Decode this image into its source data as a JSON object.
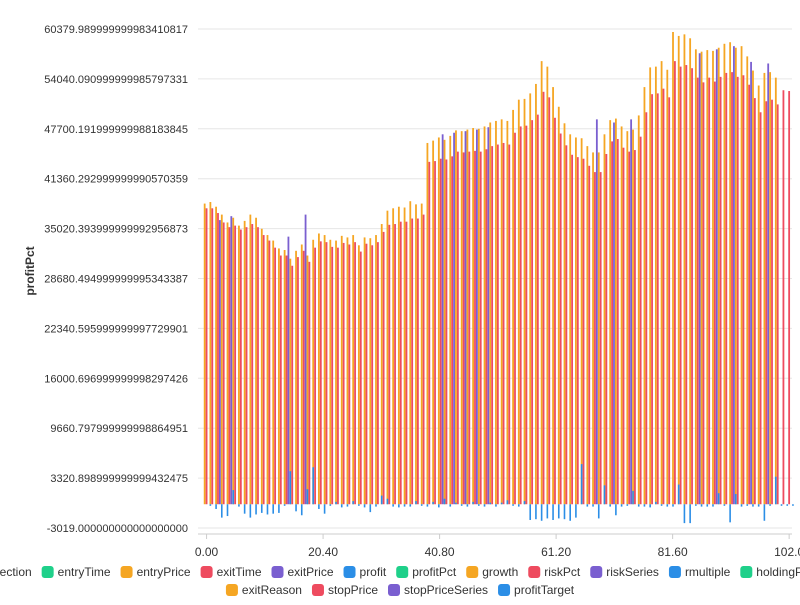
{
  "chart_data": {
    "type": "bar",
    "ylabel": "profitPct",
    "xlabel": "",
    "ylim": [
      -3019.0,
      60379.98999999998
    ],
    "xlim": [
      -1.5,
      102.5
    ],
    "y_ticks": [
      "60379.989999999983410817",
      "54040.090999999985797331",
      "47700.191999999988183845",
      "41360.292999999990570359",
      "35020.393999999992956873",
      "28680.494999999995343387",
      "22340.595999999997729901",
      "16000.696999999998297426",
      "9660.797999999998864951",
      "3320.898999999999432475",
      "-3019.000000000000000000"
    ],
    "x_ticks": [
      "0.00",
      "20.40",
      "40.80",
      "61.20",
      "81.60",
      "102.0"
    ],
    "legend": [
      {
        "name": "direction",
        "color": "#2b8ee6"
      },
      {
        "name": "entryTime",
        "color": "#1fd08a"
      },
      {
        "name": "entryPrice",
        "color": "#f5a623"
      },
      {
        "name": "exitTime",
        "color": "#ee4b5f"
      },
      {
        "name": "exitPrice",
        "color": "#7a5fd0"
      },
      {
        "name": "profit",
        "color": "#2b8ee6"
      },
      {
        "name": "profitPct",
        "color": "#1fd08a"
      },
      {
        "name": "growth",
        "color": "#f5a623"
      },
      {
        "name": "riskPct",
        "color": "#ee4b5f"
      },
      {
        "name": "riskSeries",
        "color": "#7a5fd0"
      },
      {
        "name": "rmultiple",
        "color": "#2b8ee6"
      },
      {
        "name": "holdingPeriod",
        "color": "#1fd08a"
      },
      {
        "name": "exitReason",
        "color": "#f5a623"
      },
      {
        "name": "stopPrice",
        "color": "#ee4b5f"
      },
      {
        "name": "stopPriceSeries",
        "color": "#7a5fd0"
      },
      {
        "name": "profitTarget",
        "color": "#2b8ee6"
      }
    ],
    "series_drawn": [
      {
        "name": "growth",
        "color": "#f5a623",
        "offset": -1,
        "values": [
          38200,
          38400,
          37800,
          36800,
          35800,
          36400,
          35400,
          36000,
          36800,
          36400,
          35000,
          34200,
          33500,
          32500,
          32300,
          31200,
          32200,
          33000,
          31600,
          33600,
          34400,
          34200,
          33600,
          33500,
          34100,
          33900,
          34200,
          32900,
          33900,
          33800,
          34200,
          35600,
          37300,
          37600,
          37800,
          37700,
          38500,
          38100,
          38200,
          45900,
          46200,
          46600,
          46300,
          46800,
          47500,
          47400,
          47600,
          47800,
          47700,
          48000,
          48500,
          48700,
          48900,
          48700,
          50100,
          51400,
          51500,
          52200,
          53400,
          56300,
          55600,
          53000,
          50500,
          48400,
          47000,
          46600,
          46500,
          45500,
          44700,
          44700,
          47000,
          48800,
          49000,
          48000,
          47400,
          47600,
          49400,
          53000,
          55500,
          55600,
          56300,
          55200,
          60000,
          59500,
          59700,
          59200,
          57800,
          57500,
          57700,
          57600,
          58000,
          58500,
          58700,
          58000,
          58200,
          56900,
          55100,
          53200,
          54800,
          54900,
          54200,
          null,
          null
        ]
      },
      {
        "name": "riskPct",
        "color": "#ee4b5f",
        "offset": 0,
        "values": [
          37600,
          37600,
          37000,
          35800,
          35200,
          35400,
          34900,
          35200,
          35600,
          35200,
          34200,
          33500,
          32600,
          31600,
          31600,
          30300,
          31400,
          32200,
          30800,
          32600,
          33400,
          33300,
          32700,
          32600,
          33200,
          33000,
          33300,
          32100,
          33100,
          32900,
          33300,
          34600,
          35500,
          35600,
          35900,
          35900,
          36300,
          36300,
          36800,
          43500,
          43600,
          43900,
          43800,
          44200,
          44800,
          44700,
          44800,
          44900,
          44800,
          45100,
          45500,
          45700,
          45900,
          45700,
          47200,
          48000,
          48100,
          48800,
          49500,
          52400,
          51700,
          49100,
          47100,
          45600,
          44400,
          44100,
          43900,
          43000,
          42200,
          42200,
          44500,
          46100,
          46400,
          45300,
          44800,
          45000,
          46700,
          49800,
          52100,
          52200,
          52800,
          51700,
          56300,
          55600,
          55800,
          55400,
          54200,
          53600,
          54200,
          53700,
          54300,
          54800,
          54900,
          54300,
          54500,
          53300,
          51600,
          49800,
          51200,
          51400,
          50800,
          52600,
          52500
        ]
      },
      {
        "name": "riskSeries",
        "color": "#7a5fd0",
        "offset": 1,
        "values": [
          null,
          null,
          36100,
          null,
          36600,
          null,
          null,
          null,
          null,
          null,
          null,
          null,
          null,
          null,
          34000,
          null,
          null,
          36800,
          null,
          null,
          null,
          null,
          null,
          null,
          null,
          null,
          null,
          null,
          null,
          null,
          null,
          null,
          null,
          null,
          null,
          null,
          null,
          null,
          null,
          null,
          null,
          47000,
          null,
          47200,
          null,
          47400,
          null,
          47600,
          null,
          47900,
          null,
          null,
          null,
          null,
          null,
          null,
          null,
          null,
          null,
          null,
          null,
          null,
          null,
          null,
          null,
          null,
          null,
          null,
          48900,
          null,
          null,
          48500,
          null,
          null,
          48900,
          null,
          null,
          null,
          null,
          null,
          null,
          null,
          null,
          null,
          null,
          null,
          57300,
          null,
          null,
          57800,
          null,
          null,
          58200,
          null,
          null,
          56200,
          null,
          null,
          56000,
          null,
          null,
          null,
          null
        ]
      }
    ],
    "rmultiple_values": [
      -200,
      -600,
      -1700,
      -1500,
      1800,
      -300,
      -1200,
      -1700,
      -1300,
      -1100,
      -1300,
      -1200,
      -1100,
      -200,
      4200,
      -900,
      -1400,
      1900,
      4700,
      -600,
      -1200,
      -200,
      300,
      -400,
      -300,
      400,
      -200,
      -400,
      -1000,
      -300,
      1100,
      700,
      -300,
      -400,
      -300,
      -300,
      400,
      -200,
      -300,
      300,
      -400,
      700,
      -300,
      200,
      -200,
      -300,
      300,
      -200,
      -300,
      200,
      -300,
      200,
      500,
      -200,
      -300,
      400,
      -2000,
      -1900,
      -2100,
      -1800,
      -2000,
      -1800,
      -1900,
      -2100,
      -1700,
      5100,
      -300,
      -300,
      -1800,
      2400,
      -300,
      -1400,
      -300,
      -200,
      1700,
      -300,
      -300,
      -400,
      300,
      -200,
      -300,
      -300,
      2500,
      -2400,
      -2400,
      -200,
      -300,
      -300,
      -300,
      1400,
      -200,
      -2300,
      1300,
      -300,
      -200,
      -300,
      -300,
      -2100,
      -200,
      3500,
      -200,
      -200,
      -200
    ]
  }
}
